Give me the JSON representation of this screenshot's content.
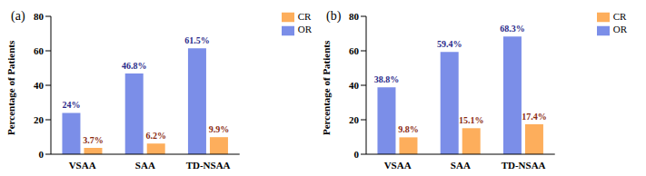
{
  "chart_data": [
    {
      "type": "bar",
      "title": "(a)",
      "ylabel": "Percentage of Patients",
      "categories": [
        "VSAA",
        "SAA",
        "TD-NSAA"
      ],
      "series": [
        {
          "name": "OR",
          "color": "#7b8ee8",
          "values": [
            24,
            46.8,
            61.5
          ],
          "value_labels": [
            "24%",
            "46.8%",
            "61.5%"
          ]
        },
        {
          "name": "CR",
          "color": "#fdae5c",
          "values": [
            3.7,
            6.2,
            9.9
          ],
          "value_labels": [
            "3.7%",
            "6.2%",
            "9.9%"
          ]
        }
      ],
      "ylim": [
        0,
        80
      ],
      "yticks": [
        0,
        20,
        40,
        60,
        80
      ],
      "data_labels": true,
      "legend": "upper right"
    },
    {
      "type": "bar",
      "title": "(b)",
      "ylabel": "Percentage of Patients",
      "categories": [
        "VSAA",
        "SAA",
        "TD-NSAA"
      ],
      "series": [
        {
          "name": "OR",
          "color": "#7b8ee8",
          "values": [
            38.8,
            59.4,
            68.3
          ],
          "value_labels": [
            "38.8%",
            "59.4%",
            "68.3%"
          ]
        },
        {
          "name": "CR",
          "color": "#fdae5c",
          "values": [
            9.8,
            15.1,
            17.4
          ],
          "value_labels": [
            "9.8%",
            "15.1%",
            "17.4%"
          ]
        }
      ],
      "ylim": [
        0,
        80
      ],
      "yticks": [
        0,
        20,
        40,
        60,
        80
      ],
      "data_labels": true,
      "legend": "upper right"
    }
  ]
}
